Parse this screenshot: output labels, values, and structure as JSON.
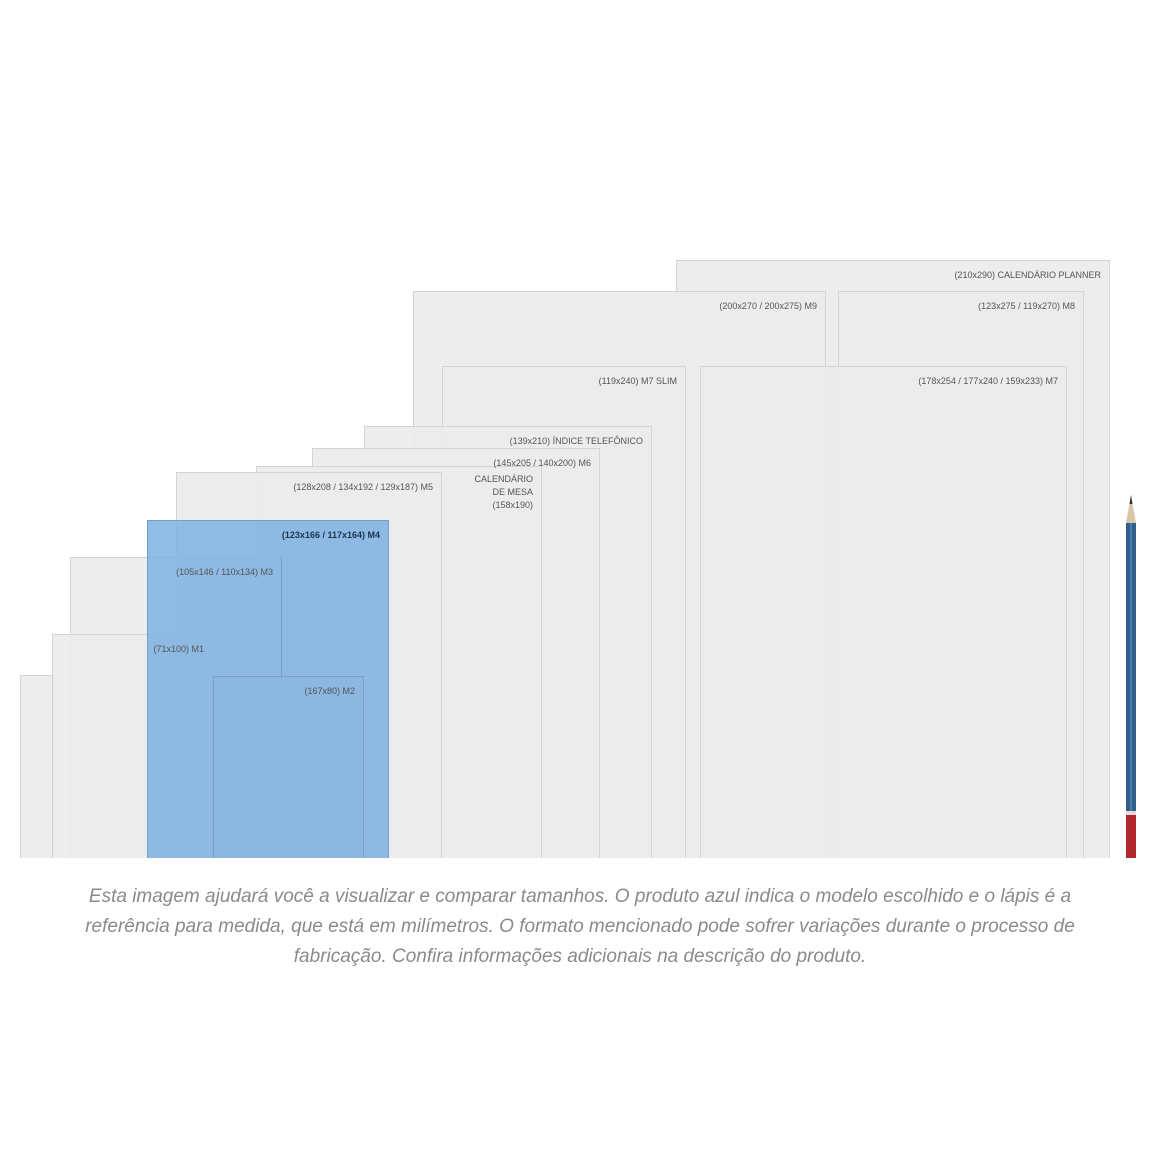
{
  "sizes": [
    {
      "label": "(210x290) CALENDÁRIO PLANNER"
    },
    {
      "label": "(200x270 / 200x275) M9"
    },
    {
      "label": "(123x275 / 119x270) M8"
    },
    {
      "label": "(119x240) M7 SLIM"
    },
    {
      "label": "(178x254 / 177x240 / 159x233) M7"
    },
    {
      "label": "(139x210) ÍNDICE TELEFÔNICO"
    },
    {
      "label": "(145x205 / 140x200) M6"
    },
    {
      "label": "CALENDÁRIO\nDE MESA\n(158x190)"
    },
    {
      "label": "(128x208 / 134x192 / 129x187) M5"
    },
    {
      "label": "(123x166 / 117x164) M4",
      "selected": true
    },
    {
      "label": "(105x146 / 110x134) M3"
    },
    {
      "label": "(71x100) M1"
    },
    {
      "label": "(167x80) M2"
    }
  ],
  "colors": {
    "selected": "#7db0e0",
    "default": "#ececec",
    "pencil_body": "#2f5f8a",
    "pencil_end": "#b0282d"
  },
  "caption": "Esta imagem ajudará você a visualizar e comparar tamanhos. O produto azul indica o modelo escolhido e o lápis é a referência para medida, que está em milímetros. O formato mencionado pode sofrer variações durante o processo de fabricação. Confira informações adicionais na descrição do produto."
}
